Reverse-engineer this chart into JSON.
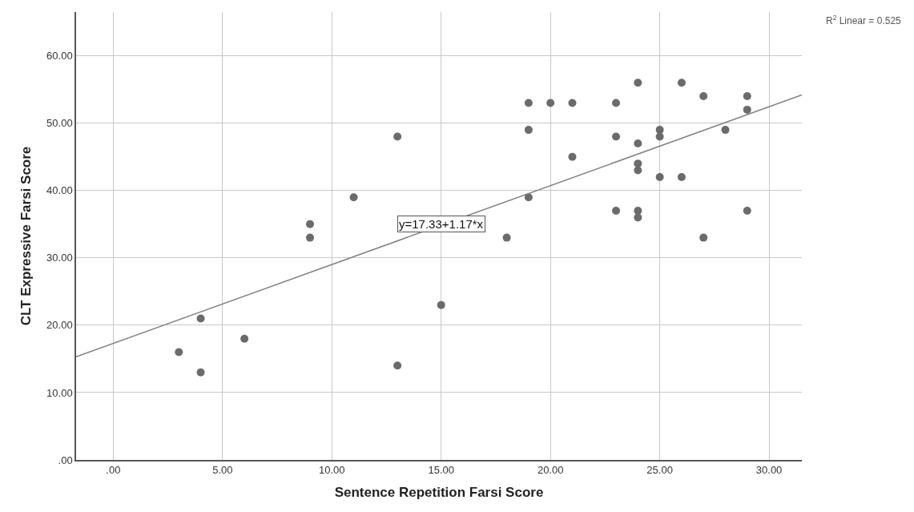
{
  "chart_data": {
    "type": "scatter",
    "xlabel": "Sentence Repetition Farsi Score",
    "ylabel": "CLT Expressive Farsi Score",
    "series": [
      {
        "color": "#6b6b6b",
        "x": [
          3,
          4,
          4,
          6,
          9,
          9,
          11,
          13,
          13,
          15,
          18,
          19,
          19,
          19,
          20,
          21,
          21,
          23,
          23,
          23,
          24,
          24,
          24,
          24,
          24,
          24,
          25,
          25,
          25,
          26,
          26,
          27,
          27,
          28,
          29,
          29,
          29
        ],
        "values": [
          16,
          21,
          13,
          18,
          35,
          33,
          39,
          48,
          14,
          23,
          33,
          53,
          49,
          39,
          53,
          53,
          45,
          53,
          48,
          37,
          56,
          47,
          44,
          43,
          37,
          36,
          49,
          48,
          42,
          56,
          42,
          54,
          33,
          49,
          54,
          52,
          37
        ]
      },
      {
        "type": "line",
        "marker": "none",
        "color": "#808080",
        "x": [
          -1.7,
          31.5
        ],
        "values": [
          15.3,
          54.2
        ]
      }
    ],
    "xlim": [
      -1.7,
      31.5
    ],
    "ylim": [
      0,
      66.5
    ],
    "xticks": [
      {
        "value": 0,
        "label": ".00"
      },
      {
        "value": 5,
        "label": "5.00"
      },
      {
        "value": 10,
        "label": "10.00"
      },
      {
        "value": 15,
        "label": "15.00"
      },
      {
        "value": 20,
        "label": "20.00"
      },
      {
        "value": 25,
        "label": "25.00"
      },
      {
        "value": 30,
        "label": "30.00"
      }
    ],
    "yticks": [
      {
        "value": 0,
        "label": ".00"
      },
      {
        "value": 10,
        "label": "10.00"
      },
      {
        "value": 20,
        "label": "20.00"
      },
      {
        "value": 30,
        "label": "30.00"
      },
      {
        "value": 40,
        "label": "40.00"
      },
      {
        "value": 50,
        "label": "50.00"
      },
      {
        "value": 60,
        "label": "60.00"
      }
    ],
    "grid": true,
    "marker": "circle",
    "annotations": [
      {
        "text": "y=17.33+1.17*x",
        "x": 15,
        "y": 35
      },
      "R$^{2}$ Linear = 0.525"
    ]
  }
}
